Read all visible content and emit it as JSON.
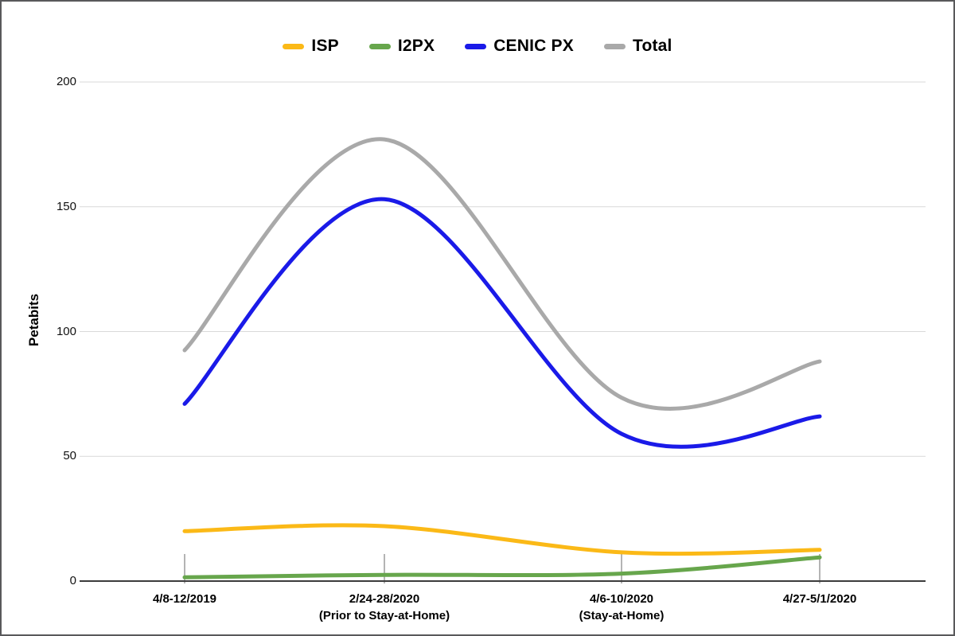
{
  "chart_data": {
    "type": "line",
    "smooth": true,
    "title": "",
    "ylabel": "Petabits",
    "ylim": [
      0,
      200
    ],
    "y_ticks": [
      0,
      50,
      100,
      150,
      200
    ],
    "grid": true,
    "grid_color": "#d9d9d9",
    "axis_color": "#3c3c3c",
    "tick_mark_color": "#9a9a9a",
    "legend_position": "top",
    "categories": [
      "4/8-12/2019",
      "2/24-28/2020",
      "4/6-10/2020",
      "4/27-5/1/2020"
    ],
    "category_sublabels": [
      "",
      "(Prior to Stay-at-Home)",
      "(Stay-at-Home)",
      ""
    ],
    "series": [
      {
        "name": "ISP",
        "color": "#FBB917",
        "values": [
          20,
          22,
          11.5,
          12.5
        ]
      },
      {
        "name": "I2PX",
        "color": "#67A64C",
        "values": [
          1.5,
          2.5,
          3,
          9.5
        ]
      },
      {
        "name": "CENIC PX",
        "color": "#1A1AE8",
        "values": [
          71,
          153,
          59,
          66
        ]
      },
      {
        "name": "Total",
        "color": "#A9A9A9",
        "values": [
          92.5,
          177,
          73.5,
          88
        ]
      }
    ]
  }
}
